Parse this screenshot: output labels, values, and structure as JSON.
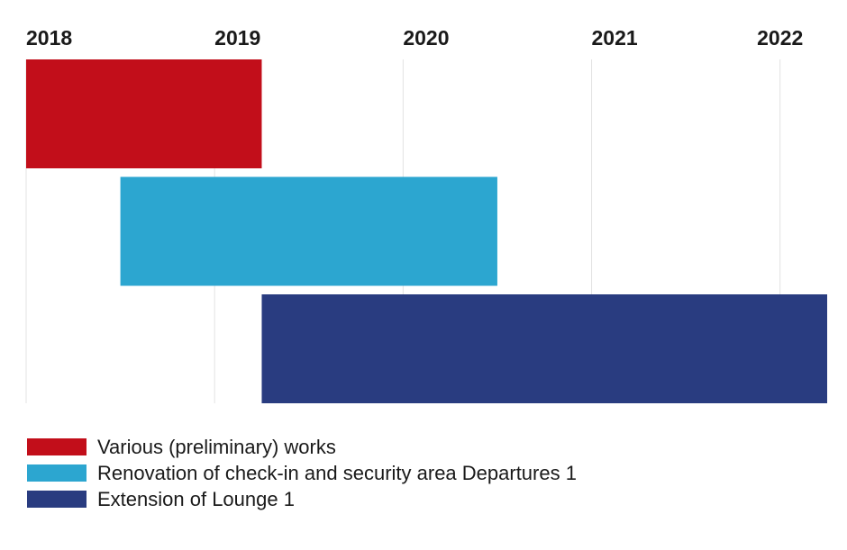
{
  "chart_data": {
    "type": "gantt",
    "title": "",
    "x_axis": {
      "min": 2018,
      "max": 2022.25,
      "ticks": [
        2018,
        2019,
        2020,
        2021,
        2022
      ],
      "position": "top",
      "grid": true
    },
    "series": [
      {
        "name": "Various (preliminary) works",
        "start": 2018.0,
        "end": 2019.25,
        "color": "#c20e1a"
      },
      {
        "name": "Renovation of check-in and security area Departures 1",
        "start": 2018.5,
        "end": 2020.5,
        "color": "#2ca6d0"
      },
      {
        "name": "Extension of Lounge 1",
        "start": 2019.25,
        "end": 2022.25,
        "color": "#293c80"
      }
    ],
    "legend_position": "bottom-left"
  }
}
